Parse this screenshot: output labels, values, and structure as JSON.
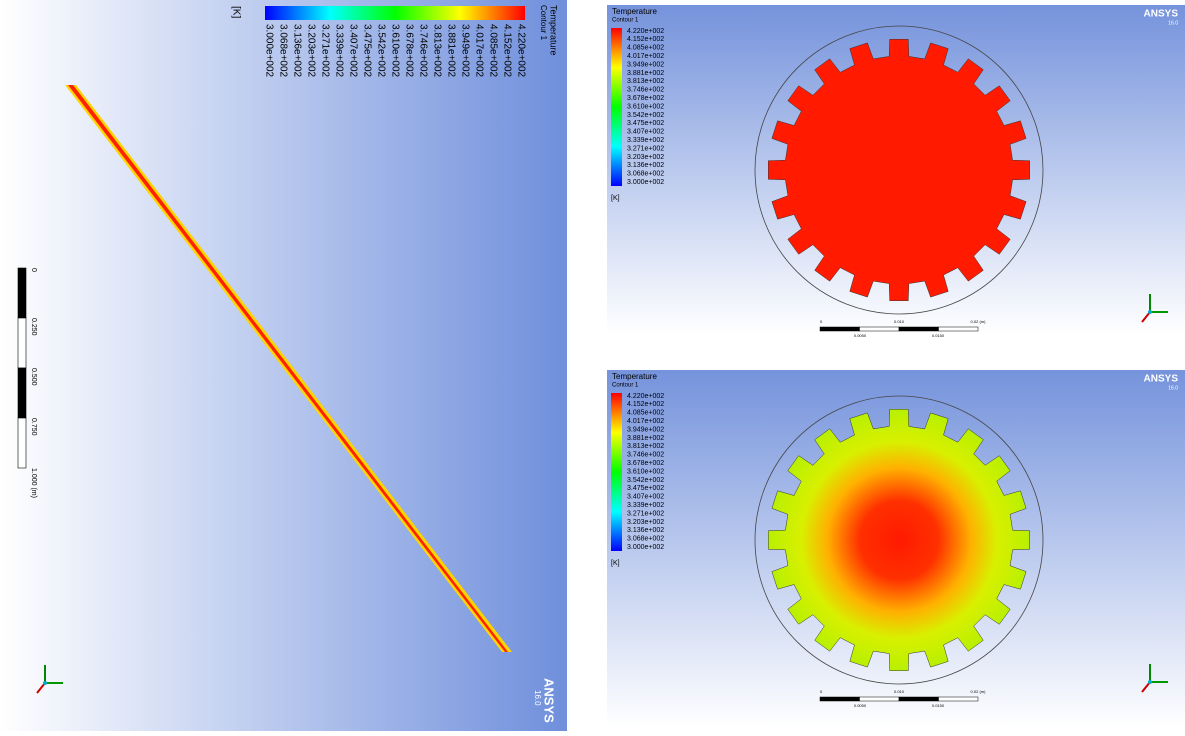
{
  "legend": {
    "title": "Temperature",
    "subtitle": "Contour 1",
    "unit": "[K]",
    "labels": [
      "4.220e+002",
      "4.152e+002",
      "4.085e+002",
      "4.017e+002",
      "3.949e+002",
      "3.881e+002",
      "3.813e+002",
      "3.746e+002",
      "3.678e+002",
      "3.610e+002",
      "3.542e+002",
      "3.475e+002",
      "3.407e+002",
      "3.339e+002",
      "3.271e+002",
      "3.203e+002",
      "3.136e+002",
      "3.068e+002",
      "3.000e+002"
    ]
  },
  "brand": "ANSYS",
  "version": "16.0",
  "panels": [
    {
      "view": "side",
      "scale_labels": [
        "0",
        "0.250",
        "0.500",
        "0.750",
        "1.000 (m)"
      ]
    },
    {
      "view": "section-uniform",
      "scale_labels": [
        "0",
        "0.010",
        "0.02 (m)",
        "0.0050",
        "0.0150"
      ]
    },
    {
      "view": "section-gradient",
      "scale_labels": [
        "0",
        "0.010",
        "0.02 (m)",
        "0.0050",
        "0.0150"
      ]
    }
  ]
}
